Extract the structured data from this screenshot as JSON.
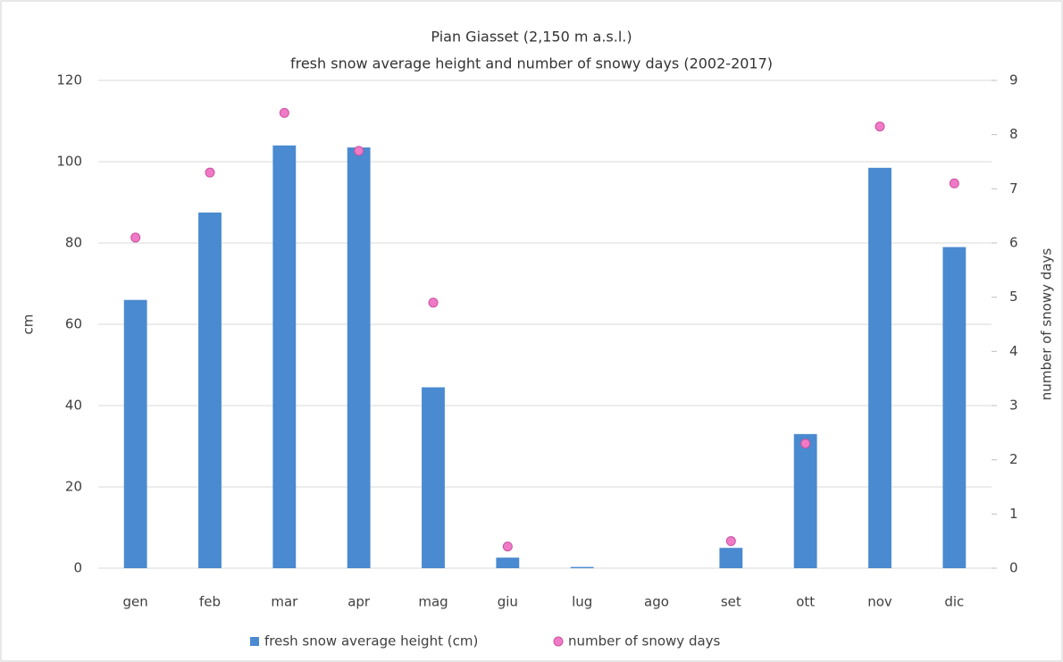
{
  "chart_data": {
    "type": "bar",
    "title": "Pian Giasset  (2,150 m a.s.l.)",
    "subtitle": "fresh snow average height and number of snowy days (2002-2017)",
    "y_label": "cm",
    "y2_label": "number of snowy days",
    "categories": [
      "gen",
      "feb",
      "mar",
      "apr",
      "mag",
      "giu",
      "lug",
      "ago",
      "set",
      "ott",
      "nov",
      "dic"
    ],
    "series": [
      {
        "name": "fresh snow average height (cm)",
        "color": "#4a8ad0",
        "type": "bar",
        "values": [
          66,
          87.5,
          104,
          103.5,
          44.5,
          2.6,
          0.3,
          0,
          5,
          33,
          98.5,
          79
        ]
      },
      {
        "name": "number of snowy days",
        "color": "#f07ac6",
        "type": "scatter",
        "axis": "y2",
        "values": [
          6.1,
          7.3,
          8.4,
          7.7,
          4.9,
          0.4,
          null,
          null,
          0.5,
          2.3,
          8.15,
          7.1
        ]
      }
    ],
    "ylim": [
      0,
      120
    ],
    "yticks": [
      0,
      20,
      40,
      60,
      80,
      100,
      120
    ],
    "y2lim": [
      0,
      9
    ],
    "y2ticks": [
      0,
      1,
      2,
      3,
      4,
      5,
      6,
      7,
      8,
      9
    ],
    "grid": true
  }
}
